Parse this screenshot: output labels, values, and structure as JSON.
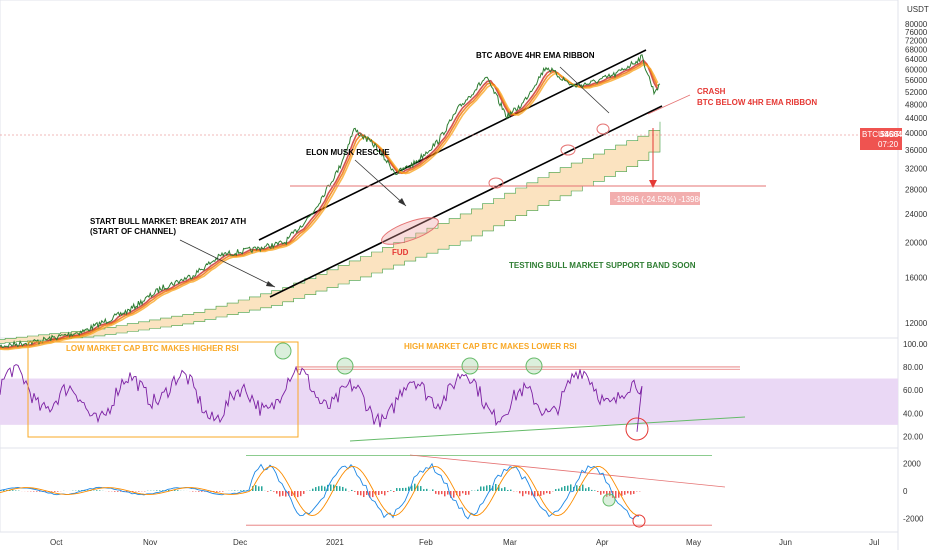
{
  "chart_data": {
    "type": "line",
    "symbol": "BTCUSDT",
    "currency": "USDT",
    "last_price": "54664",
    "countdown": "07:20",
    "price_axis": {
      "scale": "log",
      "ticks": [
        "80000",
        "76000",
        "72000",
        "68000",
        "64000",
        "60000",
        "56000",
        "52000",
        "48000",
        "44000",
        "40000",
        "36000",
        "32000",
        "28000",
        "24000",
        "20000",
        "16000",
        "12000"
      ]
    },
    "rsi_axis": {
      "ticks": [
        "100.00",
        "80.00",
        "60.00",
        "40.00",
        "20.00"
      ]
    },
    "macd_axis": {
      "ticks": [
        "2000",
        "0",
        "-2000"
      ]
    },
    "time_axis": {
      "ticks": [
        "Oct",
        "Nov",
        "Dec",
        "2021",
        "Feb",
        "Mar",
        "Apr",
        "May",
        "Jun",
        "Jul"
      ]
    },
    "price_series": {
      "name": "",
      "x": [
        "2020-09-10",
        "2020-09-25",
        "2020-10-10",
        "2020-10-25",
        "2020-11-05",
        "2020-11-15",
        "2020-11-25",
        "2020-12-05",
        "2020-12-16",
        "2020-12-25",
        "2021-01-03",
        "2021-01-08",
        "2021-01-15",
        "2021-01-22",
        "2021-01-28",
        "2021-02-05",
        "2021-02-12",
        "2021-02-21",
        "2021-02-28",
        "2021-03-05",
        "2021-03-13",
        "2021-03-22",
        "2021-03-28",
        "2021-04-05",
        "2021-04-14",
        "2021-04-18",
        "2021-04-20"
      ],
      "values": [
        10300,
        10700,
        11400,
        13000,
        15000,
        16200,
        18500,
        19100,
        20000,
        24000,
        32000,
        41000,
        37000,
        31000,
        33000,
        38000,
        47000,
        57000,
        44500,
        48000,
        61000,
        54000,
        55000,
        58000,
        64800,
        52000,
        54664
      ]
    },
    "support_band": {
      "name": "",
      "x": [
        "2020-09-10",
        "2020-10-15",
        "2020-11-15",
        "2020-12-15",
        "2021-01-15",
        "2021-02-15",
        "2021-03-15",
        "2021-04-15",
        "2021-04-20"
      ],
      "upper": [
        10800,
        11600,
        12800,
        15000,
        19000,
        24500,
        31500,
        40000,
        43000
      ],
      "lower": [
        10500,
        11000,
        11900,
        13400,
        16200,
        20000,
        25500,
        33000,
        35500
      ]
    },
    "rsi_band": [
      30,
      70
    ],
    "rsi_levels": [
      80,
      78
    ],
    "macd_levels": [
      2600,
      -2500
    ],
    "annotations": {
      "bull_market": "START BULL MARKET: BREAK 2017 ATH",
      "bull_market_2": "(START OF CHANNEL)",
      "elon": "ELON MUSK RESCUE",
      "ribbon_above": "BTC ABOVE 4HR EMA RIBBON",
      "crash": "CRASH",
      "crash_2": "BTC BELOW 4HR EMA RIBBON",
      "fud": "FUD",
      "support_test": "TESTING BULL MARKET SUPPORT BAND SOON",
      "measure": "-13986 (-24.52%) -13986",
      "rsi_low": "LOW MARKET CAP BTC MAKES HIGHER RSI",
      "rsi_high": "HIGH MARKET CAP BTC MAKES LOWER RSI"
    },
    "colors": {
      "price": "#2e7d32",
      "ribbon": [
        "#c62828",
        "#ef6c00",
        "#f9a825"
      ],
      "band_fill": "#fbe3c0",
      "band_line": "#43a047",
      "rsi": "#7b1fa2",
      "rsi_band": "#ead8f5",
      "channel": "#000000",
      "annotation_red": "#e53935",
      "annotation_green": "#2e7d32",
      "annotation_orange": "#f9a825",
      "macd_line": "#1e88e5",
      "signal_line": "#fb8c00"
    }
  }
}
